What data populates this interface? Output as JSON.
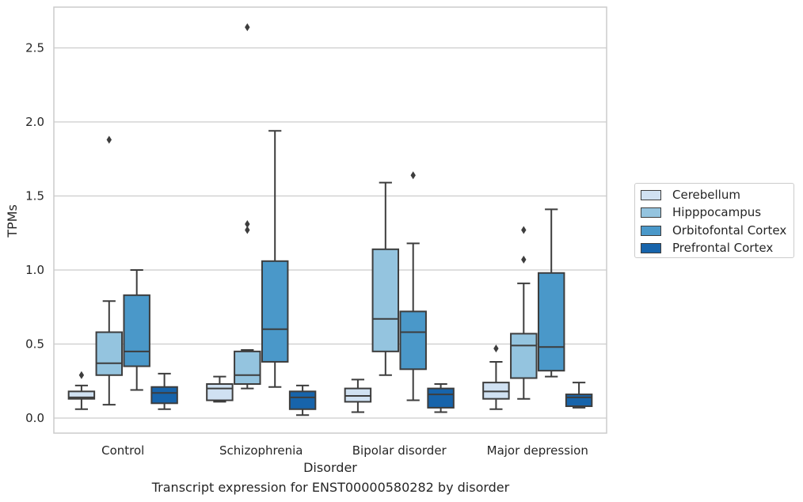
{
  "chart_data": {
    "type": "box",
    "title": "Transcript expression for ENST00000580282 by disorder",
    "xlabel": "Disorder",
    "ylabel": "TPMs",
    "ylim": [
      -0.1,
      2.78
    ],
    "yticks": [
      0.0,
      0.5,
      1.0,
      1.5,
      2.0,
      2.5
    ],
    "ytick_labels": [
      "0.0",
      "0.5",
      "1.0",
      "1.5",
      "2.0",
      "2.5"
    ],
    "categories": [
      "Control",
      "Schizophrenia",
      "Bipolar disorder",
      "Major depression"
    ],
    "grid": "horizontal",
    "legend_position": "right",
    "series": [
      {
        "name": "Cerebellum",
        "color": "#d0e1f2",
        "boxes": [
          {
            "whislo": 0.06,
            "q1": 0.13,
            "med": 0.14,
            "q3": 0.18,
            "whishi": 0.22,
            "fliers": [
              0.29
            ]
          },
          {
            "whislo": 0.11,
            "q1": 0.12,
            "med": 0.2,
            "q3": 0.23,
            "whishi": 0.28,
            "fliers": []
          },
          {
            "whislo": 0.04,
            "q1": 0.11,
            "med": 0.15,
            "q3": 0.2,
            "whishi": 0.26,
            "fliers": []
          },
          {
            "whislo": 0.06,
            "q1": 0.13,
            "med": 0.18,
            "q3": 0.24,
            "whishi": 0.38,
            "fliers": [
              0.47
            ]
          }
        ]
      },
      {
        "name": "Hipppocampus",
        "color": "#94c4df",
        "boxes": [
          {
            "whislo": 0.09,
            "q1": 0.29,
            "med": 0.37,
            "q3": 0.58,
            "whishi": 0.79,
            "fliers": [
              1.88
            ]
          },
          {
            "whislo": 0.2,
            "q1": 0.23,
            "med": 0.29,
            "q3": 0.45,
            "whishi": 0.46,
            "fliers": [
              1.27,
              1.31,
              2.64
            ]
          },
          {
            "whislo": 0.29,
            "q1": 0.45,
            "med": 0.67,
            "q3": 1.14,
            "whishi": 1.59,
            "fliers": []
          },
          {
            "whislo": 0.13,
            "q1": 0.27,
            "med": 0.49,
            "q3": 0.57,
            "whishi": 0.91,
            "fliers": [
              1.07,
              1.27
            ]
          }
        ]
      },
      {
        "name": "Orbitofontal Cortex",
        "color": "#4a98c9",
        "boxes": [
          {
            "whislo": 0.19,
            "q1": 0.35,
            "med": 0.45,
            "q3": 0.83,
            "whishi": 1.0,
            "fliers": []
          },
          {
            "whislo": 0.21,
            "q1": 0.38,
            "med": 0.6,
            "q3": 1.06,
            "whishi": 1.94,
            "fliers": []
          },
          {
            "whislo": 0.12,
            "q1": 0.33,
            "med": 0.58,
            "q3": 0.72,
            "whishi": 1.18,
            "fliers": [
              1.64
            ]
          },
          {
            "whislo": 0.28,
            "q1": 0.32,
            "med": 0.48,
            "q3": 0.98,
            "whishi": 1.41,
            "fliers": []
          }
        ]
      },
      {
        "name": "Prefrontal Cortex",
        "color": "#1764ab",
        "boxes": [
          {
            "whislo": 0.06,
            "q1": 0.1,
            "med": 0.17,
            "q3": 0.21,
            "whishi": 0.3,
            "fliers": []
          },
          {
            "whislo": 0.02,
            "q1": 0.06,
            "med": 0.14,
            "q3": 0.18,
            "whishi": 0.22,
            "fliers": []
          },
          {
            "whislo": 0.04,
            "q1": 0.07,
            "med": 0.16,
            "q3": 0.2,
            "whishi": 0.23,
            "fliers": []
          },
          {
            "whislo": 0.07,
            "q1": 0.08,
            "med": 0.14,
            "q3": 0.16,
            "whishi": 0.24,
            "fliers": []
          }
        ]
      }
    ]
  }
}
